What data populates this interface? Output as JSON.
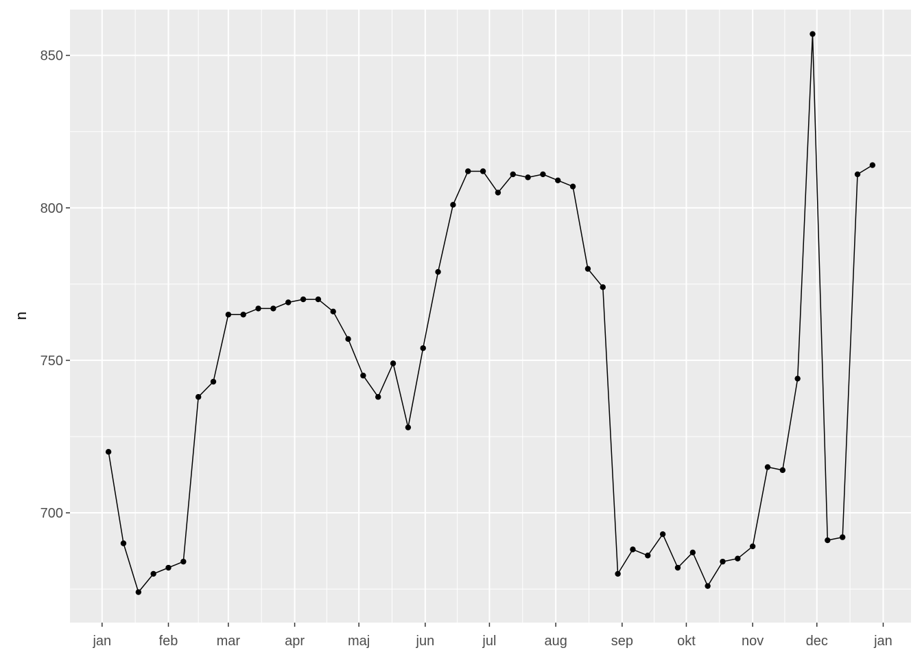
{
  "chart_data": {
    "type": "line",
    "title": "",
    "xlabel": "",
    "ylabel": "n",
    "ylim": [
      664,
      865
    ],
    "y_ticks": [
      700,
      750,
      800,
      850
    ],
    "x_tick_labels": [
      "jan",
      "feb",
      "mar",
      "apr",
      "maj",
      "jun",
      "jul",
      "aug",
      "sep",
      "okt",
      "nov",
      "dec",
      "jan"
    ],
    "x_tick_dates": [
      "2021-01-01",
      "2021-02-01",
      "2021-03-01",
      "2021-04-01",
      "2021-05-01",
      "2021-06-01",
      "2021-07-01",
      "2021-08-01",
      "2021-09-01",
      "2021-10-01",
      "2021-11-01",
      "2021-12-01",
      "2022-01-01"
    ],
    "x_range": [
      "2020-12-17",
      "2022-01-14"
    ],
    "grid": true,
    "colors": {
      "panel": "#ebebeb",
      "grid": "#ffffff",
      "line": "#000000"
    },
    "x": [
      "2021-01-04",
      "2021-01-11",
      "2021-01-18",
      "2021-01-25",
      "2021-02-01",
      "2021-02-08",
      "2021-02-15",
      "2021-02-22",
      "2021-03-01",
      "2021-03-08",
      "2021-03-15",
      "2021-03-22",
      "2021-03-29",
      "2021-04-05",
      "2021-04-12",
      "2021-04-19",
      "2021-04-26",
      "2021-05-03",
      "2021-05-10",
      "2021-05-17",
      "2021-05-24",
      "2021-05-31",
      "2021-06-07",
      "2021-06-14",
      "2021-06-21",
      "2021-06-28",
      "2021-07-05",
      "2021-07-12",
      "2021-07-19",
      "2021-07-26",
      "2021-08-02",
      "2021-08-09",
      "2021-08-16",
      "2021-08-23",
      "2021-08-30",
      "2021-09-06",
      "2021-09-13",
      "2021-09-20",
      "2021-09-27",
      "2021-10-04",
      "2021-10-11",
      "2021-10-18",
      "2021-10-25",
      "2021-11-01",
      "2021-11-08",
      "2021-11-15",
      "2021-11-22",
      "2021-11-29",
      "2021-12-06",
      "2021-12-13",
      "2021-12-20",
      "2021-12-27"
    ],
    "series": [
      {
        "values": [
          720,
          690,
          674,
          680,
          682,
          684,
          738,
          743,
          765,
          765,
          767,
          767,
          769,
          770,
          770,
          766,
          757,
          745,
          738,
          749,
          728,
          754,
          779,
          801,
          812,
          812,
          805,
          811,
          810,
          811,
          809,
          807,
          780,
          774,
          680,
          688,
          686,
          693,
          682,
          687,
          676,
          684,
          685,
          689,
          715,
          714,
          744,
          857,
          691,
          692,
          811,
          814
        ]
      }
    ]
  }
}
